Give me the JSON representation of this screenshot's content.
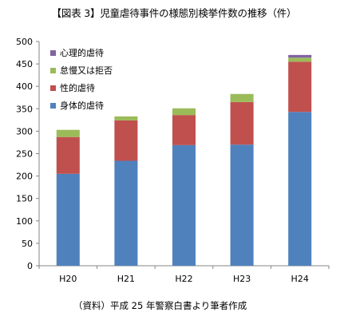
{
  "chart_data": {
    "type": "bar",
    "stacked": true,
    "title": "【図表 3】児童虐待事件の様態別検挙件数の推移（件）",
    "categories": [
      "H20",
      "H21",
      "H22",
      "H23",
      "H24"
    ],
    "series": [
      {
        "name": "身体的虐待",
        "color": "#4f81bd",
        "values": [
          205,
          234,
          269,
          270,
          343
        ]
      },
      {
        "name": "性的虐待",
        "color": "#c0504d",
        "values": [
          82,
          90,
          67,
          95,
          112
        ]
      },
      {
        "name": "怠慢又は拒否",
        "color": "#9bbb59",
        "values": [
          16,
          9,
          15,
          18,
          9
        ]
      },
      {
        "name": "心理的虐待",
        "color": "#8064a2",
        "values": [
          0,
          0,
          0,
          0,
          6
        ]
      }
    ],
    "ylim": [
      0,
      500
    ],
    "yticks": [
      0,
      50,
      100,
      150,
      200,
      250,
      300,
      350,
      400,
      450,
      500
    ],
    "grid": false,
    "legend_position": "top-left",
    "xlabel": "",
    "ylabel": ""
  },
  "source_note": "（資料）平成 25 年警察白書より筆者作成"
}
